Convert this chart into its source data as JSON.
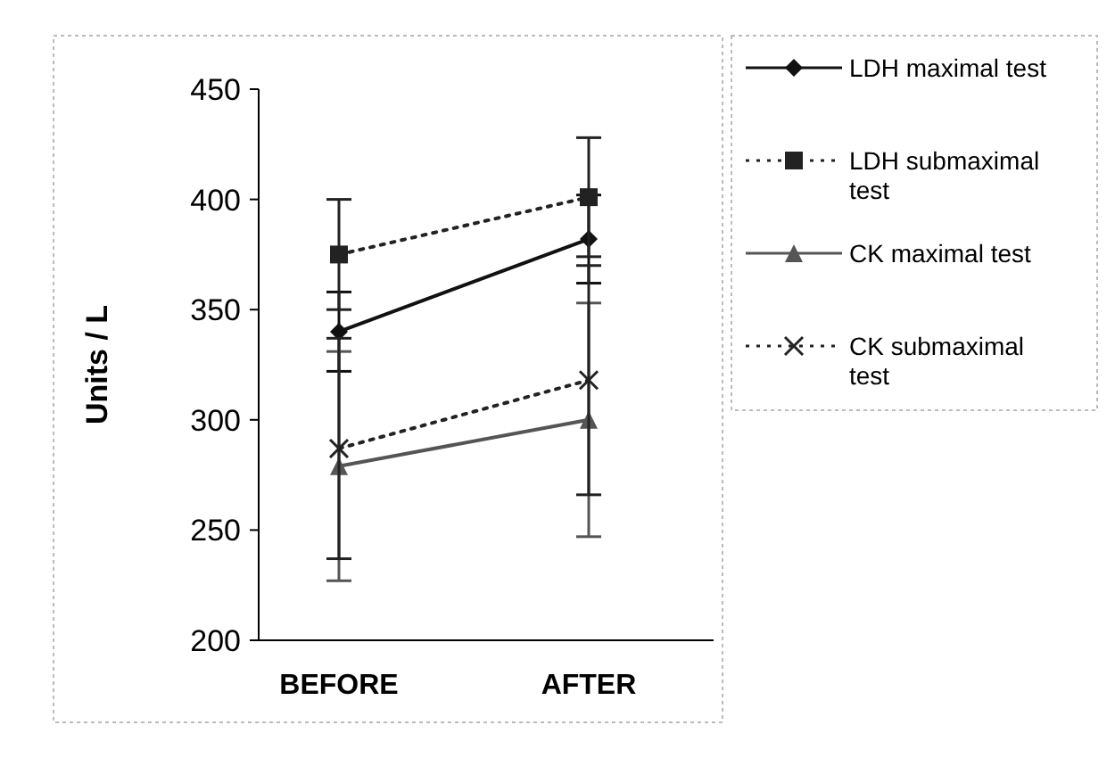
{
  "chart_data": {
    "type": "line",
    "ylabel": "Units / L",
    "categories": [
      "BEFORE",
      "AFTER"
    ],
    "ylim": [
      200,
      450
    ],
    "yticks": [
      200,
      250,
      300,
      350,
      400,
      450
    ],
    "grid": false,
    "legend": "right",
    "series": [
      {
        "name": "LDH maximal test",
        "color": "#111111",
        "values": [
          340,
          382
        ],
        "errors": [
          18,
          20
        ],
        "marker": "diamond",
        "line_style": "solid"
      },
      {
        "name": "LDH submaximal test",
        "color": "#222222",
        "values": [
          375,
          401
        ],
        "errors": [
          25,
          27
        ],
        "marker": "square",
        "line_style": "dotted"
      },
      {
        "name": "CK maximal test",
        "color": "#555555",
        "values": [
          279,
          300
        ],
        "errors": [
          52,
          53
        ],
        "marker": "triangle",
        "line_style": "solid"
      },
      {
        "name": "CK submaximal test",
        "color": "#222222",
        "values": [
          287,
          318
        ],
        "errors": [
          50,
          52
        ],
        "marker": "cross",
        "line_style": "dotted"
      }
    ]
  }
}
